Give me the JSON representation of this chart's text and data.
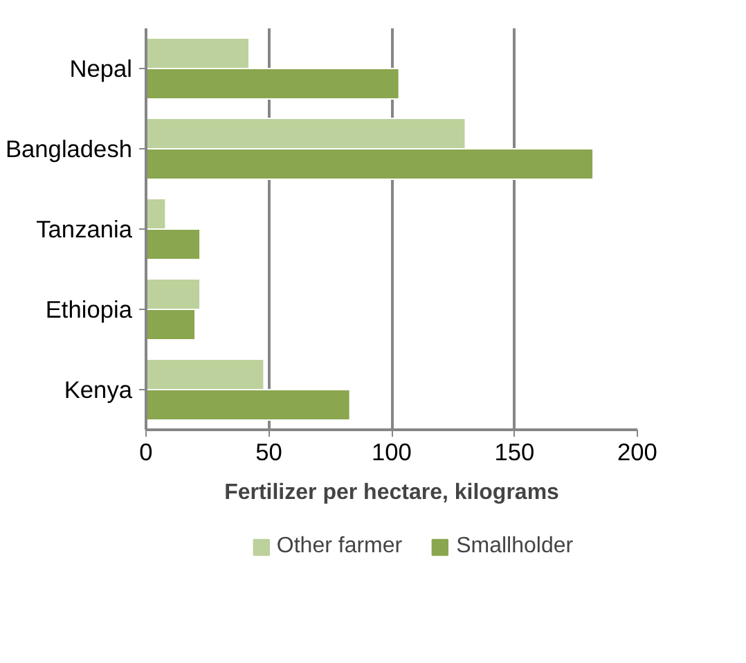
{
  "chart_data": {
    "type": "bar",
    "orientation": "horizontal",
    "xlabel": "Fertilizer per hectare, kilograms",
    "categories": [
      "Nepal",
      "Bangladesh",
      "Tanzania",
      "Ethiopia",
      "Kenya"
    ],
    "series": [
      {
        "name": "Other farmer",
        "color": "#bcd19b",
        "values": [
          42,
          130,
          8,
          22,
          48
        ]
      },
      {
        "name": "Smallholder",
        "color": "#8aa64e",
        "values": [
          103,
          182,
          22,
          20,
          83
        ]
      }
    ],
    "xlim": [
      0,
      200
    ],
    "xticks": [
      0,
      50,
      100,
      150,
      200
    ],
    "grid": "x",
    "legend": "bottom"
  }
}
